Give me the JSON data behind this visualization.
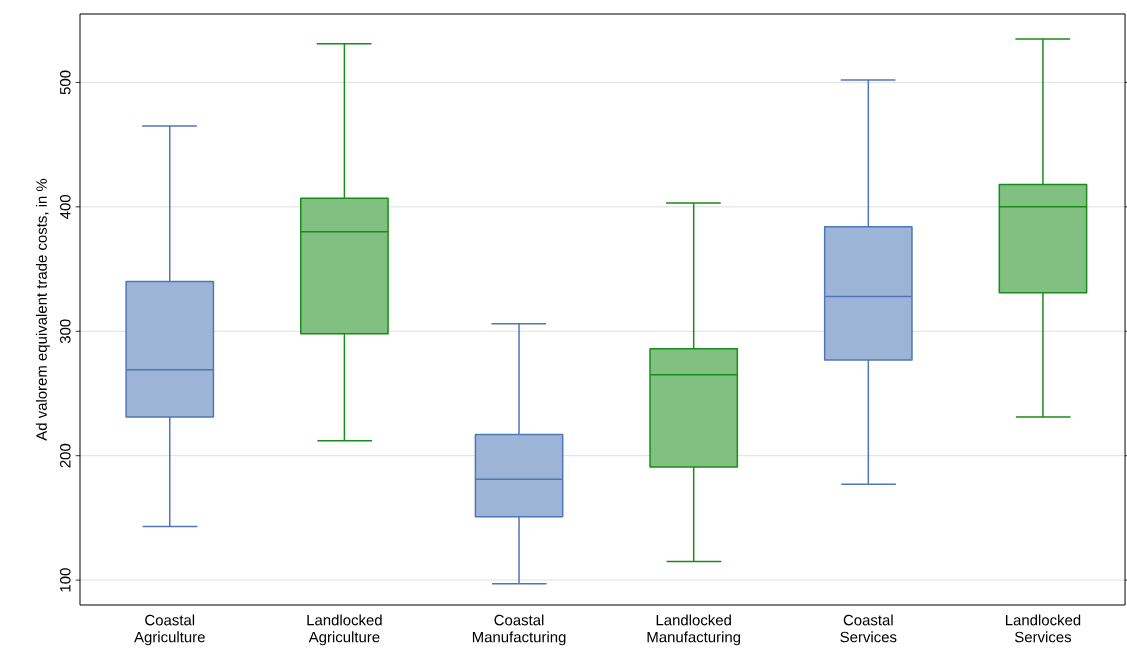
{
  "chart_data": {
    "type": "box",
    "ylabel": "Ad valorem equivalent trade costs, in %",
    "categories": [
      "Coastal Agriculture",
      "Landlocked Agriculture",
      "Coastal Manufacturing",
      "Landlocked Manufacturing",
      "Coastal Services",
      "Landlocked Services"
    ],
    "boxes": [
      {
        "low": 143,
        "q1": 231,
        "median": 269,
        "q3": 340,
        "high": 465
      },
      {
        "low": 212,
        "q1": 298,
        "median": 380,
        "q3": 407,
        "high": 531
      },
      {
        "low": 97,
        "q1": 151,
        "median": 181,
        "q3": 217,
        "high": 306
      },
      {
        "low": 115,
        "q1": 191,
        "median": 265,
        "q3": 286,
        "high": 403
      },
      {
        "low": 177,
        "q1": 277,
        "median": 328,
        "q3": 384,
        "high": 502
      },
      {
        "low": 231,
        "q1": 331,
        "median": 400,
        "q3": 418,
        "high": 535
      }
    ],
    "colors": [
      "#4f77b7",
      "#1a8c1a",
      "#4f77b7",
      "#1a8c1a",
      "#4f77b7",
      "#1a8c1a"
    ],
    "ylim": [
      80,
      555
    ],
    "yticks": [
      100,
      200,
      300,
      400,
      500
    ],
    "grid": "y"
  }
}
